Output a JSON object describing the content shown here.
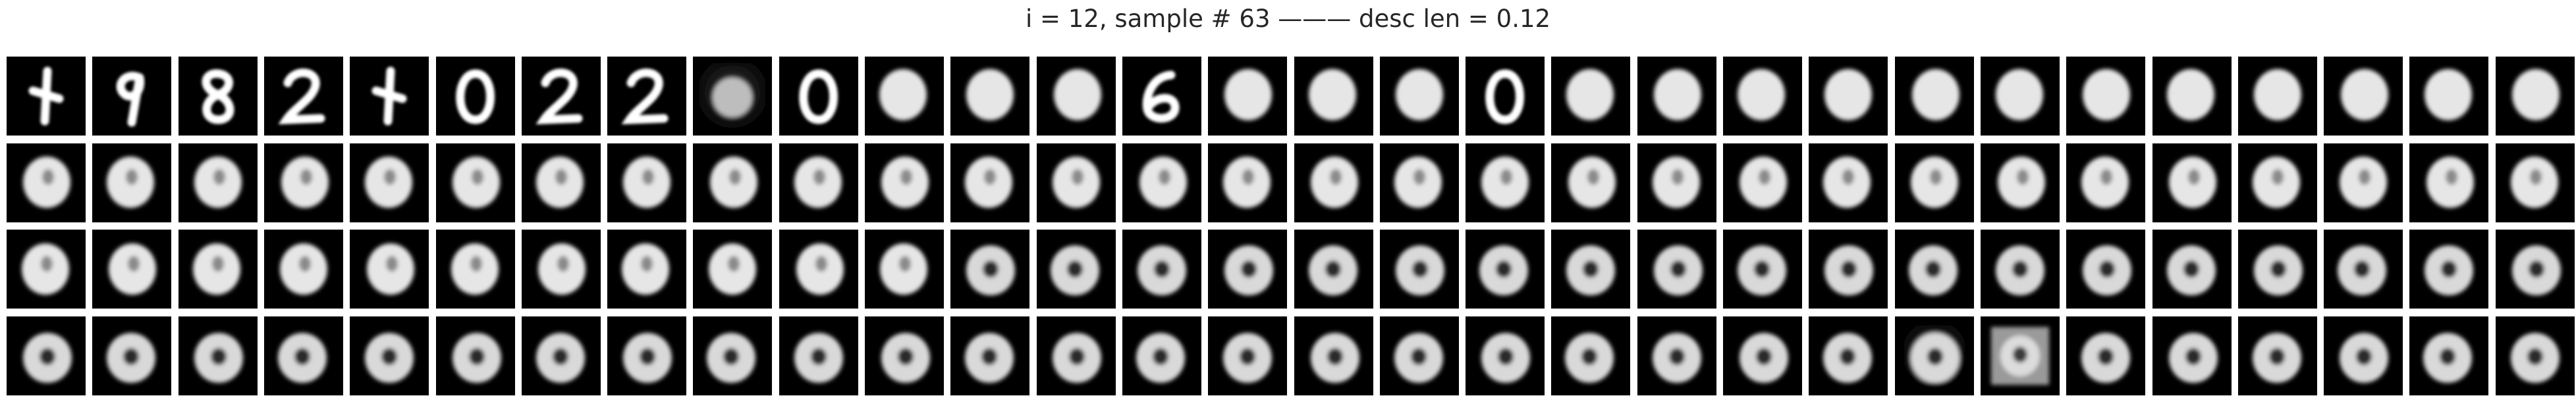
{
  "title": "i = 12, sample # 63 ——— desc len = 0.12",
  "grid": {
    "rows": 4,
    "columns": 30,
    "background_color": "#ffffff",
    "tile_background": "#000000",
    "tile_foreground": "#ffffff"
  },
  "tiles": [
    [
      "digit-1",
      "digit-9",
      "digit-8",
      "digit-2",
      "digit-1",
      "digit-0",
      "digit-2",
      "digit-2",
      "fuzzy-blob",
      "digit-0",
      "blob",
      "blob",
      "blob",
      "digit-6",
      "blob",
      "blob",
      "blob",
      "digit-0",
      "blob",
      "blob",
      "blob",
      "blob",
      "blob",
      "blob",
      "blob",
      "blob",
      "blob",
      "blob",
      "blob",
      "blob"
    ],
    [
      "blob",
      "blob",
      "blob",
      "blob",
      "blob",
      "blob",
      "blob",
      "blob",
      "blob",
      "blob",
      "blob",
      "blob",
      "blob",
      "blob",
      "blob",
      "blob",
      "blob",
      "blob",
      "blob",
      "blob",
      "blob",
      "blob",
      "blob",
      "blob",
      "blob",
      "blob",
      "blob",
      "blob",
      "blob",
      "blob"
    ],
    [
      "blob",
      "blob",
      "blob",
      "blob",
      "blob",
      "blob",
      "blob",
      "blob",
      "blob",
      "blob",
      "blob",
      "ring",
      "ring",
      "ring",
      "ring",
      "ring",
      "ring",
      "ring",
      "ring",
      "ring",
      "ring",
      "ring",
      "ring",
      "ring",
      "ring",
      "ring",
      "ring",
      "ring",
      "ring",
      "ring"
    ],
    [
      "ring",
      "ring",
      "ring",
      "ring",
      "ring",
      "ring",
      "ring",
      "ring",
      "ring",
      "ring",
      "ring",
      "ring",
      "ring",
      "ring",
      "ring",
      "ring",
      "ring",
      "ring",
      "ring",
      "ring",
      "ring",
      "ring",
      "fuzzy-ring",
      "fuzzy-square",
      "ring",
      "ring",
      "ring",
      "ring",
      "ring",
      "ring"
    ]
  ]
}
